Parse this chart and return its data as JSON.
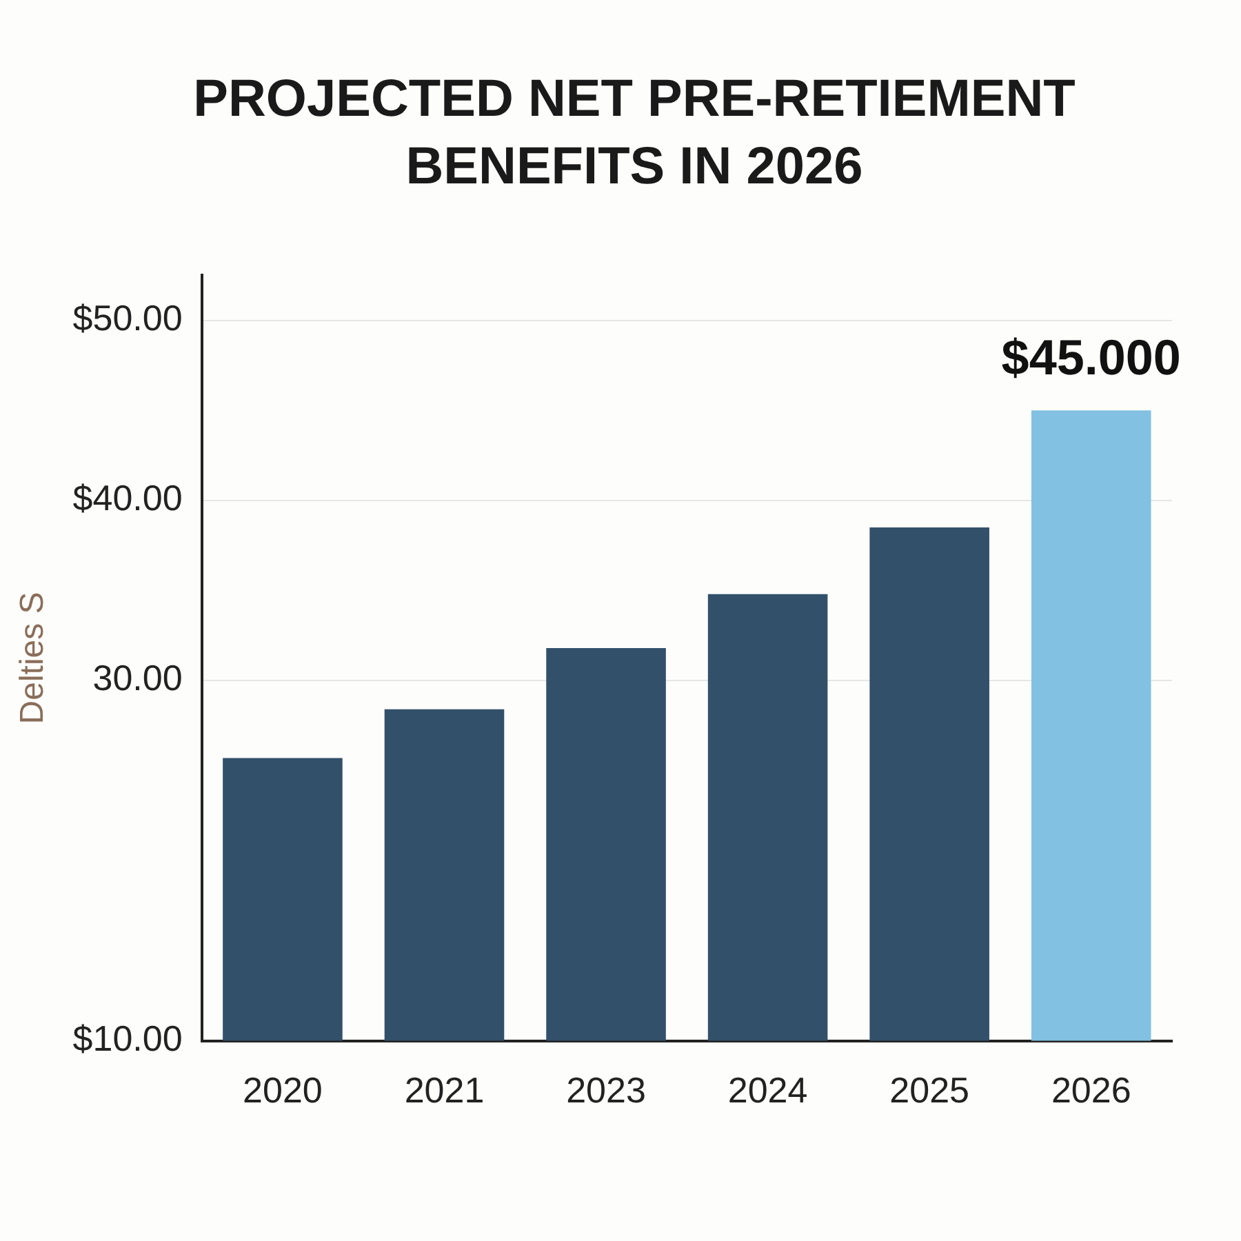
{
  "chart_data": {
    "type": "bar",
    "title": "PROJECTED NET PRE-RETIEMENT BENEFITS IN 2026",
    "ylabel": "Delties S",
    "categories": [
      "2020",
      "2021",
      "2023",
      "2024",
      "2025",
      "2026"
    ],
    "values": [
      25.7,
      28.4,
      31.8,
      34.8,
      38.5,
      45
    ],
    "colors": [
      "#33506b",
      "#33506b",
      "#33506b",
      "#33506b",
      "#33506b",
      "#82c1e2"
    ],
    "value_labels": [
      null,
      null,
      null,
      null,
      null,
      "$45.000"
    ],
    "ylim": [
      10,
      52.5
    ],
    "yticks": [
      {
        "value": 10,
        "label": "$10.00"
      },
      {
        "value": 30,
        "label": "30.00"
      },
      {
        "value": 40,
        "label": "$40.00"
      },
      {
        "value": 50,
        "label": "$50.00"
      }
    ],
    "grid": "y"
  }
}
